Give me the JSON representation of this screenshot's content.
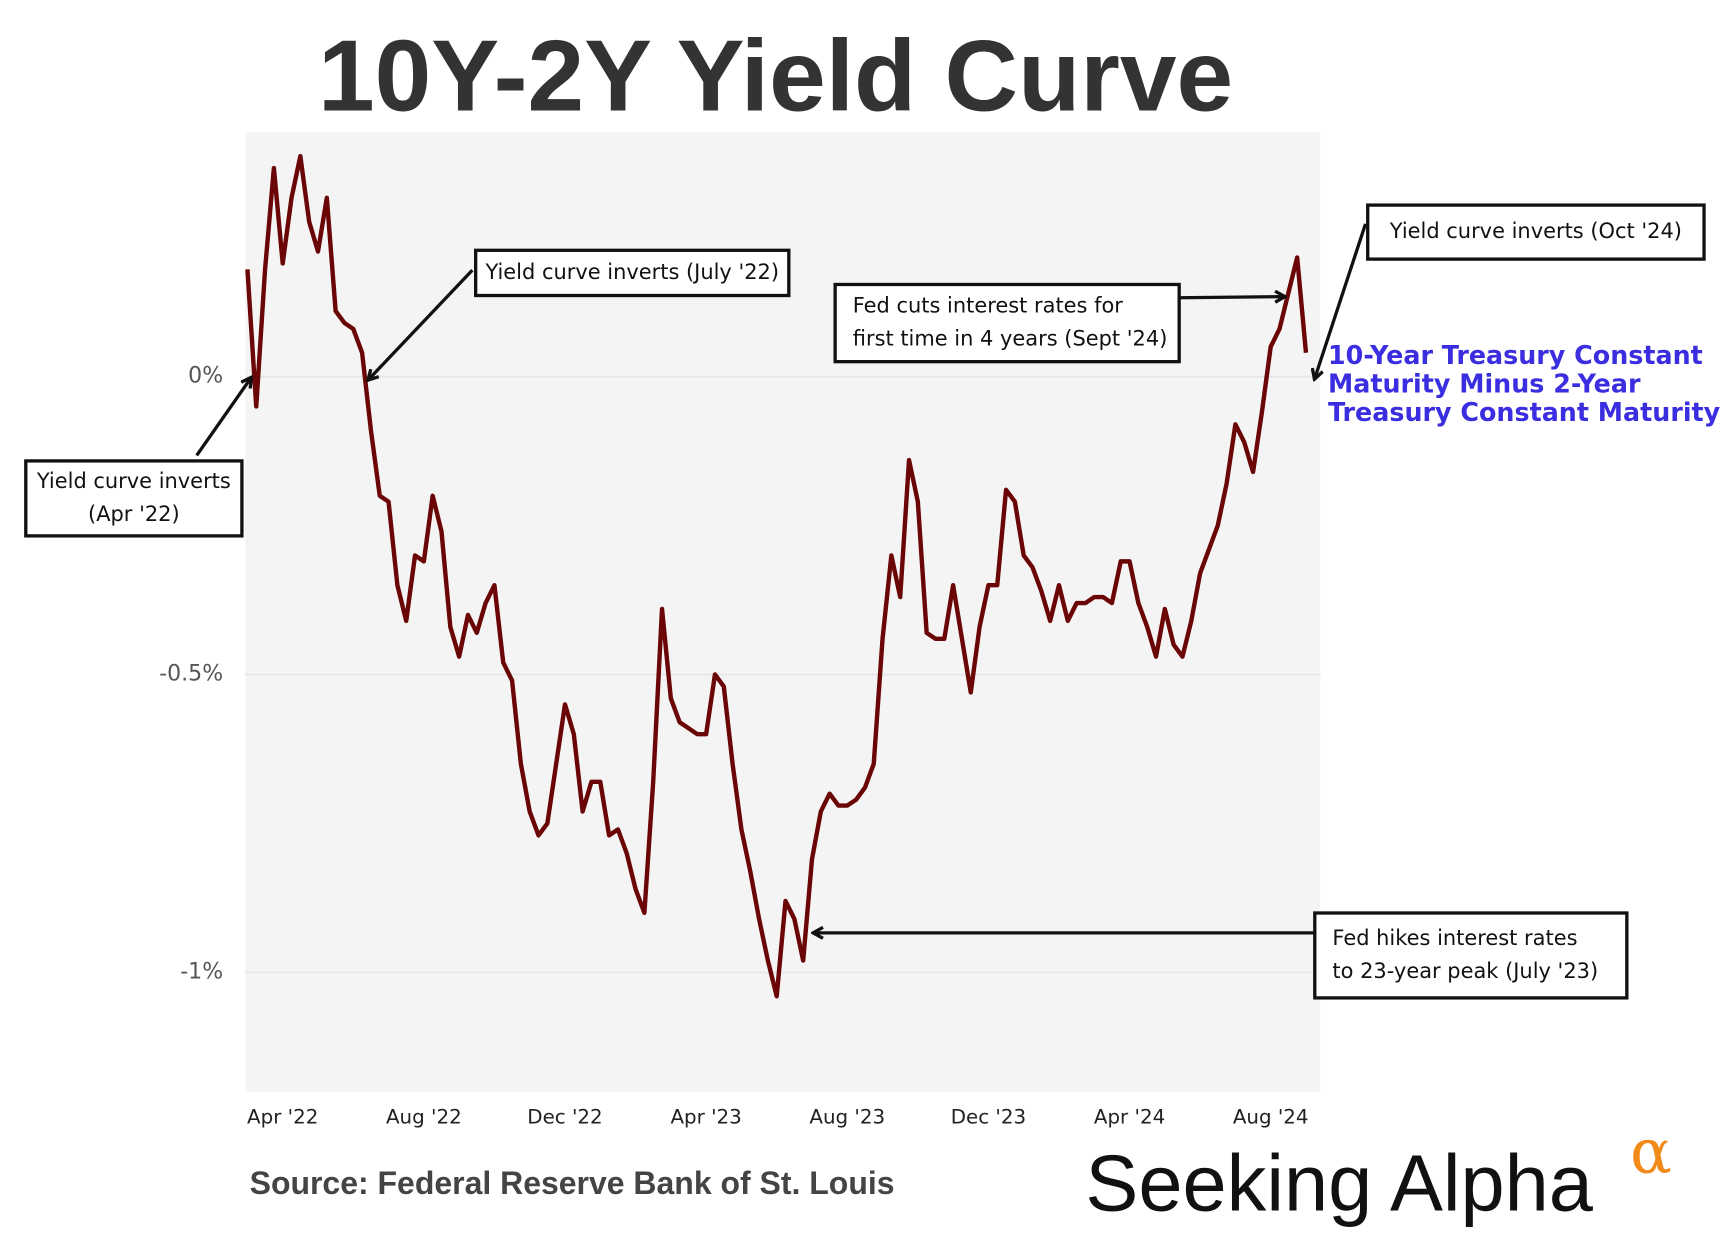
{
  "chart_data": {
    "type": "line",
    "title": "10Y-2Y Yield Curve",
    "source": "Source: Federal Reserve Bank of St. Louis",
    "brand": "Seeking Alpha",
    "brand_mark": "α",
    "categories": [
      null,
      null,
      null,
      null,
      "Apr '22",
      null,
      null,
      null,
      null,
      null,
      null,
      null,
      null,
      null,
      null,
      null,
      null,
      null,
      null,
      null,
      "Aug '22",
      null,
      null,
      null,
      null,
      null,
      null,
      null,
      null,
      null,
      null,
      null,
      null,
      null,
      null,
      null,
      "Dec '22",
      null,
      null,
      null,
      null,
      null,
      null,
      null,
      null,
      null,
      null,
      null,
      null,
      null,
      null,
      null,
      "Apr '23",
      null,
      null,
      null,
      null,
      null,
      null,
      null,
      null,
      null,
      null,
      null,
      null,
      null,
      null,
      null,
      "Aug '23",
      null,
      null,
      null,
      null,
      null,
      null,
      null,
      null,
      null,
      null,
      null,
      null,
      null,
      null,
      null,
      "Dec '23",
      null,
      null,
      null,
      null,
      null,
      null,
      null,
      null,
      null,
      null,
      null,
      null,
      null,
      null,
      null,
      "Apr '24",
      null,
      null,
      null,
      null,
      null,
      null,
      null,
      null,
      null,
      null,
      null,
      null,
      null,
      null,
      null,
      "Aug '24",
      null,
      null,
      null,
      null
    ],
    "series": [
      {
        "name": "10-Year Treasury Constant Maturity Minus 2-Year Treasury Constant Maturity",
        "color": "#6b0606",
        "values": [
          0.18,
          -0.05,
          0.18,
          0.35,
          0.19,
          0.3,
          0.37,
          0.26,
          0.21,
          0.3,
          0.11,
          0.09,
          0.08,
          0.04,
          -0.09,
          -0.2,
          -0.21,
          -0.35,
          -0.41,
          -0.3,
          -0.31,
          -0.2,
          -0.26,
          -0.42,
          -0.47,
          -0.4,
          -0.43,
          -0.38,
          -0.35,
          -0.48,
          -0.51,
          -0.65,
          -0.73,
          -0.77,
          -0.75,
          -0.65,
          -0.55,
          -0.6,
          -0.73,
          -0.68,
          -0.68,
          -0.77,
          -0.76,
          -0.8,
          -0.86,
          -0.9,
          -0.68,
          -0.39,
          -0.54,
          -0.58,
          -0.59,
          -0.6,
          -0.6,
          -0.5,
          -0.52,
          -0.65,
          -0.76,
          -0.83,
          -0.91,
          -0.98,
          -1.04,
          -0.88,
          -0.91,
          -0.98,
          -0.81,
          -0.73,
          -0.7,
          -0.72,
          -0.72,
          -0.71,
          -0.69,
          -0.65,
          -0.44,
          -0.3,
          -0.37,
          -0.14,
          -0.21,
          -0.43,
          -0.44,
          -0.44,
          -0.35,
          -0.44,
          -0.53,
          -0.42,
          -0.35,
          -0.35,
          -0.19,
          -0.21,
          -0.3,
          -0.32,
          -0.36,
          -0.41,
          -0.35,
          -0.41,
          -0.38,
          -0.38,
          -0.37,
          -0.37,
          -0.38,
          -0.31,
          -0.31,
          -0.38,
          -0.42,
          -0.47,
          -0.39,
          -0.45,
          -0.47,
          -0.41,
          -0.33,
          -0.29,
          -0.25,
          -0.18,
          -0.08,
          -0.11,
          -0.16,
          -0.06,
          0.05,
          0.08,
          0.14,
          0.2,
          0.04
        ]
      }
    ],
    "ylim": [
      -1.2,
      0.41
    ],
    "yticks": [
      {
        "value": 0,
        "label": "0%"
      },
      {
        "value": -0.5,
        "label": "-0.5%"
      },
      {
        "value": -1,
        "label": "-1%"
      }
    ],
    "grid": true,
    "legend_color": "#3b2ee0",
    "annotations": [
      {
        "lines": [
          "Yield curve inverts",
          "(Apr '22)"
        ]
      },
      {
        "lines": [
          "Yield curve inverts (July '22)"
        ]
      },
      {
        "lines": [
          "Fed cuts interest rates for",
          "first time in 4 years (Sept '24)"
        ]
      },
      {
        "lines": [
          "Yield curve inverts (Oct '24)"
        ]
      },
      {
        "lines": [
          "Fed hikes interest rates",
          "to 23-year peak (July '23)"
        ]
      }
    ]
  }
}
